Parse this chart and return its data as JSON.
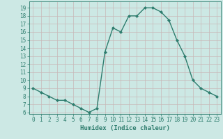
{
  "x": [
    0,
    1,
    2,
    3,
    4,
    5,
    6,
    7,
    8,
    9,
    10,
    11,
    12,
    13,
    14,
    15,
    16,
    17,
    18,
    19,
    20,
    21,
    22,
    23
  ],
  "y": [
    9,
    8.5,
    8,
    7.5,
    7.5,
    7,
    6.5,
    6,
    6.5,
    13.5,
    16.5,
    16,
    18,
    18,
    19,
    19,
    18.5,
    17.5,
    15,
    13,
    10,
    9,
    8.5,
    8
  ],
  "line_color": "#2e7d6e",
  "marker": "D",
  "marker_size": 2.0,
  "bg_color": "#cce8e4",
  "grid_color": "#c8b8b8",
  "title": "",
  "xlabel": "Humidex (Indice chaleur)",
  "ylabel": "",
  "xlim": [
    -0.5,
    23.5
  ],
  "ylim": [
    5.8,
    19.8
  ],
  "yticks": [
    6,
    7,
    8,
    9,
    10,
    11,
    12,
    13,
    14,
    15,
    16,
    17,
    18,
    19
  ],
  "xticks": [
    0,
    1,
    2,
    3,
    4,
    5,
    6,
    7,
    8,
    9,
    10,
    11,
    12,
    13,
    14,
    15,
    16,
    17,
    18,
    19,
    20,
    21,
    22,
    23
  ],
  "tick_label_fontsize": 5.5,
  "xlabel_fontsize": 6.5,
  "axis_color": "#2e7d6e",
  "linewidth": 1.0
}
